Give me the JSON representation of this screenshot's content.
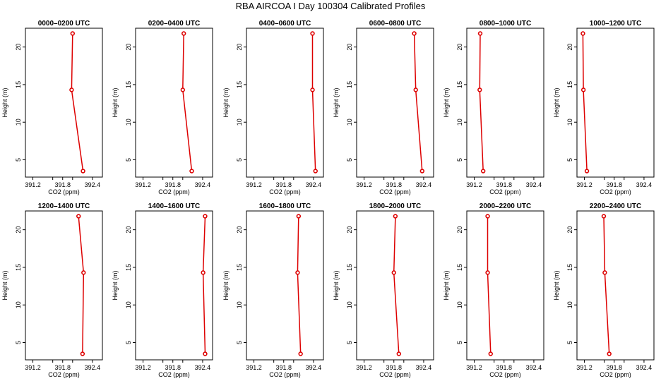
{
  "chart_data": {
    "type": "line",
    "title": "RBA AIRCOA I  Day 100304  Calibrated Profiles",
    "xlabel": "CO2 (ppm)",
    "ylabel": "Height (m)",
    "xlim": [
      391.05,
      392.6
    ],
    "ylim": [
      2.7,
      22.5
    ],
    "xticks": [
      391.2,
      391.8,
      392.4
    ],
    "xtick_labels_all": [
      "391.2",
      "391.8",
      "392.4"
    ],
    "xminor": [
      391.6,
      392.0
    ],
    "yticks": [
      5,
      10,
      15,
      20
    ],
    "ytick_labels": [
      "5",
      "10",
      "15",
      "20"
    ],
    "heights": [
      21.8,
      14.3,
      3.5
    ],
    "grid": false,
    "panels": [
      {
        "title": "0000–0200 UTC",
        "co2": [
          392.0,
          391.98,
          392.21
        ]
      },
      {
        "title": "0200–0400 UTC",
        "co2": [
          392.02,
          392.0,
          392.18
        ]
      },
      {
        "title": "0400–0600 UTC",
        "co2": [
          392.38,
          392.38,
          392.44
        ]
      },
      {
        "title": "0600–0800 UTC",
        "co2": [
          392.21,
          392.24,
          392.37
        ]
      },
      {
        "title": "0800–1000 UTC",
        "co2": [
          391.32,
          391.31,
          391.38
        ]
      },
      {
        "title": "1000–1200 UTC",
        "co2": [
          391.17,
          391.18,
          391.25
        ]
      },
      {
        "title": "1200–1400 UTC",
        "co2": [
          392.12,
          392.22,
          392.2
        ]
      },
      {
        "title": "1400–1600 UTC",
        "co2": [
          392.45,
          392.41,
          392.45
        ]
      },
      {
        "title": "1600–1800 UTC",
        "co2": [
          392.1,
          392.08,
          392.14
        ]
      },
      {
        "title": "1800–2000 UTC",
        "co2": [
          391.83,
          391.8,
          391.9
        ]
      },
      {
        "title": "2000–2200 UTC",
        "co2": [
          391.47,
          391.47,
          391.53
        ]
      },
      {
        "title": "2200–2400 UTC",
        "co2": [
          391.59,
          391.61,
          391.7
        ]
      }
    ]
  },
  "colors": {
    "series": "#dd0000",
    "axes": "#000000",
    "background": "#ffffff"
  }
}
